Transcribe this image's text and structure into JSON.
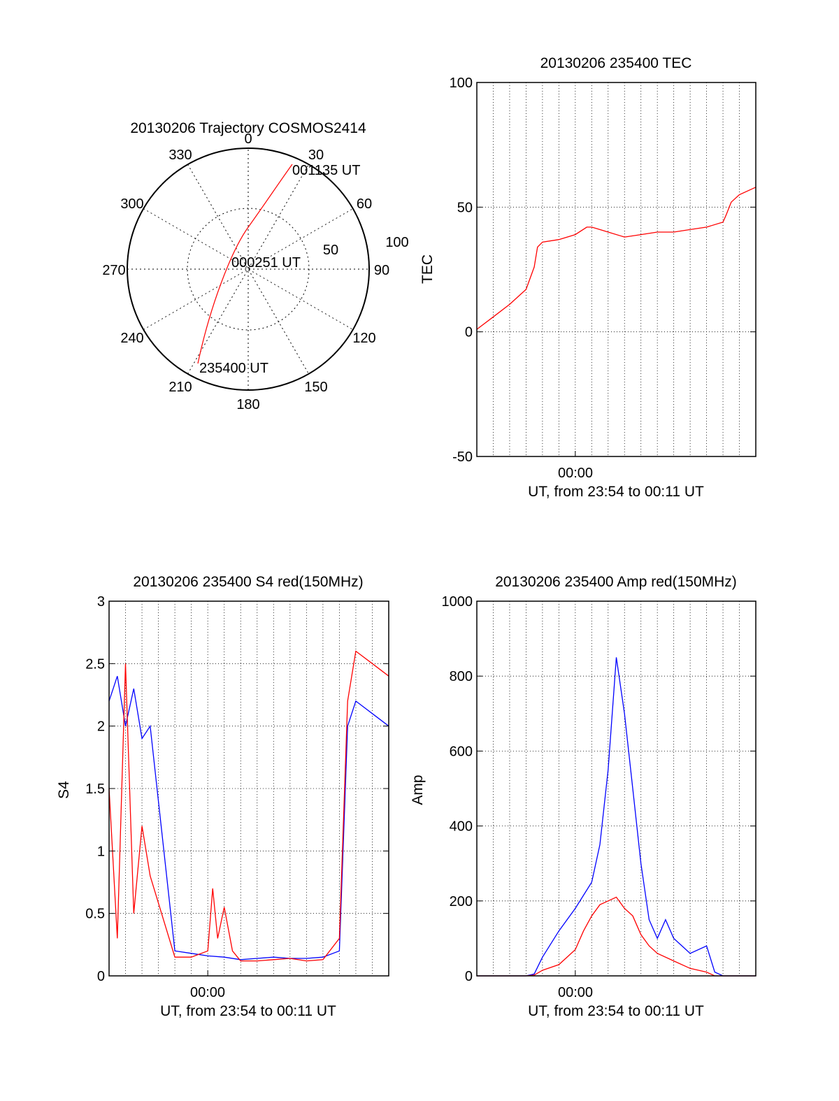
{
  "polar": {
    "title": "20130206 Trajectory COSMOS2414",
    "angle_labels": [
      "0",
      "30",
      "60",
      "90",
      "120",
      "150",
      "180",
      "210",
      "240",
      "270",
      "300",
      "330"
    ],
    "radius_labels": [
      "50",
      "100"
    ],
    "start_label": "235400 UT",
    "mid_label": "000251 UT",
    "end_label": "001135 UT",
    "track_color": "#ff0000"
  },
  "chart_data": [
    {
      "type": "line",
      "title": "20130206 235400 TEC",
      "ylabel": "TEC",
      "xlabel": "UT, from 23:54 to 00:11 UT",
      "x_tick_label": "00:00",
      "xlim_minutes": [
        -6,
        11
      ],
      "ylim": [
        -50,
        100
      ],
      "yticks": [
        -50,
        0,
        50,
        100
      ],
      "grid": true,
      "series": [
        {
          "color": "#ff0000",
          "x": [
            -6,
            -5,
            -4,
            -3,
            -2.5,
            -2.3,
            -2,
            -1,
            0,
            0.7,
            1,
            1.5,
            2,
            3,
            4,
            5,
            6,
            7,
            8,
            9,
            9.2,
            9.5,
            10,
            11
          ],
          "y": [
            1,
            6,
            11,
            17,
            26,
            34,
            36,
            37,
            39,
            42,
            42,
            41,
            40,
            38,
            39,
            40,
            40,
            41,
            42,
            44,
            47,
            52,
            55,
            58
          ]
        }
      ]
    },
    {
      "type": "line",
      "title": "20130206 235400 S4 red(150MHz)",
      "ylabel": "S4",
      "xlabel": "UT, from 23:54 to 00:11 UT",
      "x_tick_label": "00:00",
      "xlim_minutes": [
        -6,
        11
      ],
      "ylim": [
        0,
        3
      ],
      "yticks": [
        0,
        0.5,
        1,
        1.5,
        2,
        2.5,
        3
      ],
      "grid": true,
      "series": [
        {
          "color": "#0000ff",
          "x": [
            -6,
            -5.5,
            -5,
            -4.5,
            -4,
            -3.5,
            -2,
            -1,
            0,
            1,
            2,
            3,
            4,
            5,
            6,
            7,
            8,
            8.5,
            9,
            10,
            11
          ],
          "y": [
            2.2,
            2.4,
            2.0,
            2.3,
            1.9,
            2.0,
            0.2,
            0.18,
            0.16,
            0.15,
            0.13,
            0.14,
            0.15,
            0.14,
            0.14,
            0.15,
            0.2,
            2.0,
            2.2,
            2.1,
            2.0
          ]
        },
        {
          "color": "#ff0000",
          "x": [
            -6,
            -5.5,
            -5,
            -4.5,
            -4,
            -3.5,
            -2,
            -1,
            0,
            0.3,
            0.6,
            1,
            1.5,
            2,
            3,
            4,
            5,
            6,
            7,
            8,
            8.5,
            9,
            10,
            11
          ],
          "y": [
            1.5,
            0.3,
            2.5,
            0.5,
            1.2,
            0.8,
            0.15,
            0.15,
            0.2,
            0.7,
            0.3,
            0.55,
            0.2,
            0.12,
            0.12,
            0.13,
            0.14,
            0.12,
            0.13,
            0.3,
            2.2,
            2.6,
            2.5,
            2.4
          ]
        }
      ]
    },
    {
      "type": "line",
      "title": "20130206 235400 Amp red(150MHz)",
      "ylabel": "Amp",
      "xlabel": "UT, from 23:54 to 00:11 UT",
      "x_tick_label": "00:00",
      "xlim_minutes": [
        -6,
        11
      ],
      "ylim": [
        0,
        1000
      ],
      "yticks": [
        0,
        200,
        400,
        600,
        800,
        1000
      ],
      "grid": true,
      "series": [
        {
          "color": "#0000ff",
          "x": [
            -6,
            -3,
            -2.5,
            -2,
            -1,
            0,
            1,
            1.5,
            2,
            2.5,
            3,
            3.5,
            4,
            4.5,
            5,
            5.5,
            6,
            7,
            8,
            8.5,
            9,
            11
          ],
          "y": [
            0,
            0,
            5,
            50,
            120,
            180,
            250,
            350,
            550,
            850,
            700,
            500,
            300,
            150,
            100,
            150,
            100,
            60,
            80,
            10,
            0,
            0
          ]
        },
        {
          "color": "#ff0000",
          "x": [
            -6,
            -3,
            -2.5,
            -2,
            -1,
            0,
            0.5,
            1,
            1.5,
            2,
            2.5,
            3,
            3.5,
            4,
            4.5,
            5,
            6,
            7,
            8,
            8.5,
            11
          ],
          "y": [
            0,
            0,
            2,
            15,
            30,
            70,
            120,
            160,
            190,
            200,
            210,
            180,
            160,
            110,
            80,
            60,
            40,
            20,
            10,
            0,
            0
          ]
        }
      ]
    }
  ]
}
